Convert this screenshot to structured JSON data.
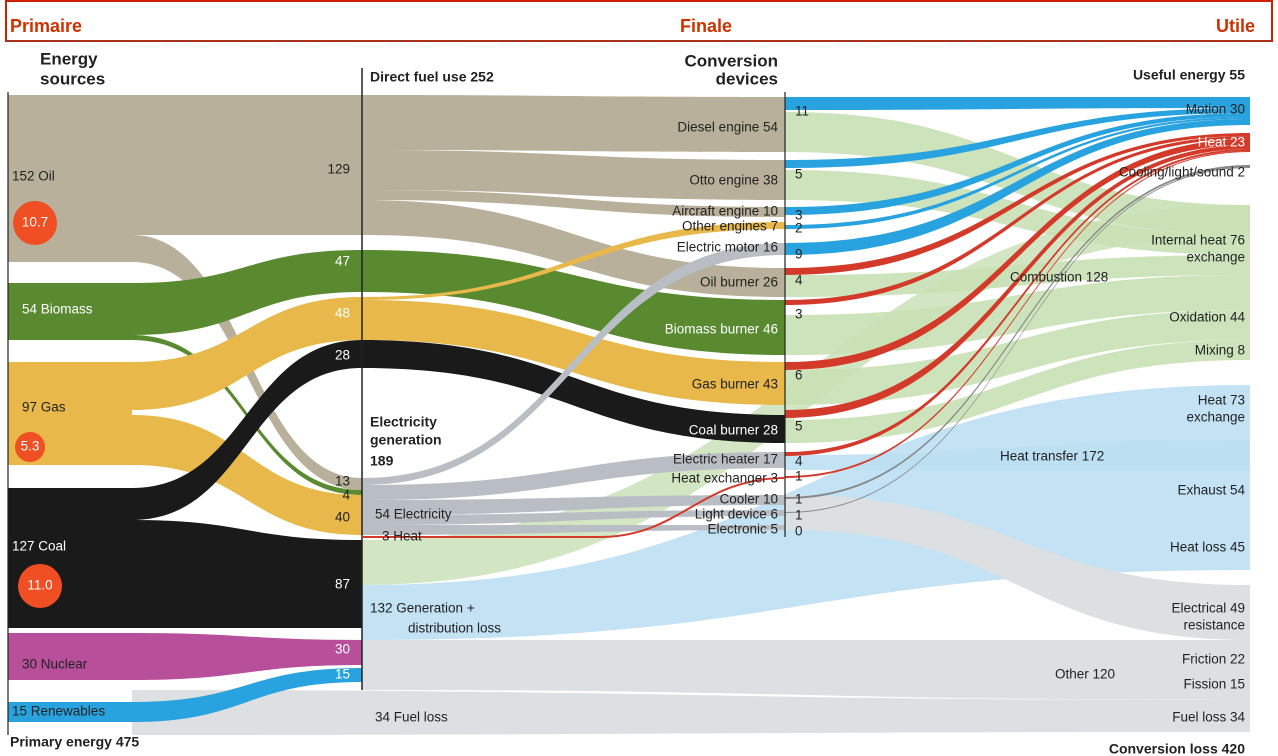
{
  "header": {
    "left": "Primaire",
    "center": "Finale",
    "right": "Utile"
  },
  "headings": {
    "sources": [
      "Energy",
      "sources"
    ],
    "devices": [
      "Conversion",
      "devices"
    ],
    "direct": "Direct fuel use 252",
    "electricity": [
      "Electricity",
      "generation",
      "189"
    ],
    "useful": "Useful energy 55",
    "primary": "Primary energy 475",
    "loss": "Conversion loss 420"
  },
  "sources": [
    {
      "label": "152 Oil",
      "badge": "10.7"
    },
    {
      "label": "54 Biomass"
    },
    {
      "label": "97 Gas",
      "badge": "5.3"
    },
    {
      "label": "127 Coal",
      "badge": "11.0"
    },
    {
      "label": "30 Nuclear"
    },
    {
      "label": "15 Renewables"
    }
  ],
  "flows": [
    "129",
    "47",
    "48",
    "28",
    "13",
    "4",
    "40",
    "87",
    "30",
    "15"
  ],
  "generation": {
    "electricity": "54 Electricity",
    "heat": "3 Heat",
    "loss": [
      "132 Generation +",
      "distribution loss"
    ],
    "fuel_loss": "34 Fuel loss"
  },
  "devices": [
    {
      "label": "Diesel engine 54",
      "out": "11"
    },
    {
      "label": "Otto engine 38",
      "out": "5"
    },
    {
      "label": "Aircraft engine 10",
      "out": "3"
    },
    {
      "label": "Other engines 7",
      "out": "2"
    },
    {
      "label": "Electric motor 16",
      "out": "9"
    },
    {
      "label": "Oil burner 26",
      "out": "4"
    },
    {
      "label": "Biomass burner 46",
      "out": "3"
    },
    {
      "label": "Gas burner 43",
      "out": "6"
    },
    {
      "label": "Coal burner 28",
      "out": "5"
    },
    {
      "label": "Electric heater 17",
      "out": "4"
    },
    {
      "label": "Heat exchanger 3",
      "out": "1"
    },
    {
      "label": "Cooler 10",
      "out": "1"
    },
    {
      "label": "Light device 6",
      "out": "1"
    },
    {
      "label": "Electronic 5",
      "out": "0"
    }
  ],
  "useful": [
    {
      "lines": [
        "Motion 30"
      ]
    },
    {
      "lines": [
        "Heat 23"
      ]
    },
    {
      "lines": [
        "Cooling/light/sound 2"
      ]
    },
    {
      "lines": [
        "Internal heat 76",
        "exchange"
      ]
    },
    {
      "lines": [
        "Oxidation 44"
      ]
    },
    {
      "lines": [
        "Mixing 8"
      ]
    },
    {
      "lines": [
        "Heat 73",
        "exchange"
      ]
    },
    {
      "lines": [
        "Exhaust 54"
      ]
    },
    {
      "lines": [
        "Heat loss 45"
      ]
    },
    {
      "lines": [
        "Electrical 49",
        "resistance"
      ]
    },
    {
      "lines": [
        "Friction 22"
      ]
    },
    {
      "lines": [
        "Fission 15"
      ]
    },
    {
      "lines": [
        "Fuel loss 34"
      ]
    }
  ],
  "groups": [
    "Combustion 128",
    "Heat transfer 172",
    "Other 120"
  ]
}
